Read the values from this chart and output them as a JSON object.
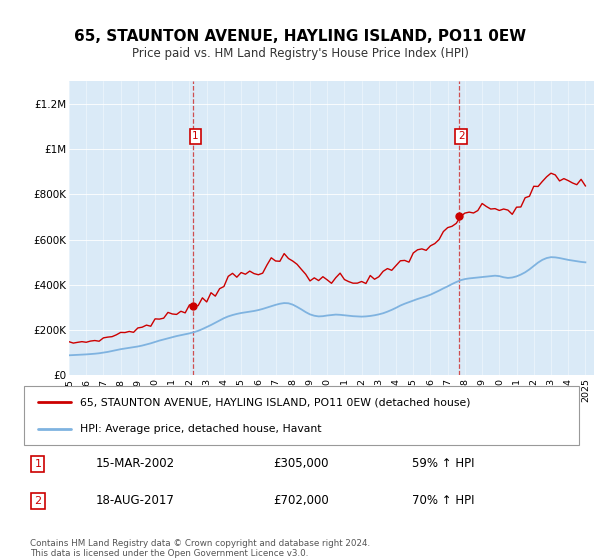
{
  "title": "65, STAUNTON AVENUE, HAYLING ISLAND, PO11 0EW",
  "subtitle": "Price paid vs. HM Land Registry's House Price Index (HPI)",
  "title_fontsize": 12,
  "subtitle_fontsize": 9,
  "bg_color": "#daeaf7",
  "legend_label_red": "65, STAUNTON AVENUE, HAYLING ISLAND, PO11 0EW (detached house)",
  "legend_label_blue": "HPI: Average price, detached house, Havant",
  "sale1_date": "15-MAR-2002",
  "sale1_price": "£305,000",
  "sale1_hpi": "59% ↑ HPI",
  "sale1_year": 2002.2,
  "sale1_value": 305000,
  "sale2_date": "18-AUG-2017",
  "sale2_price": "£702,000",
  "sale2_hpi": "70% ↑ HPI",
  "sale2_year": 2017.63,
  "sale2_value": 702000,
  "copyright": "Contains HM Land Registry data © Crown copyright and database right 2024.\nThis data is licensed under the Open Government Licence v3.0.",
  "ylim": [
    0,
    1300000
  ],
  "yticks": [
    0,
    200000,
    400000,
    600000,
    800000,
    1000000,
    1200000
  ],
  "ytick_labels": [
    "£0",
    "£200K",
    "£400K",
    "£600K",
    "£800K",
    "£1M",
    "£1.2M"
  ],
  "red_color": "#cc0000",
  "blue_color": "#7fb3e0",
  "dashed_color": "#cc3333",
  "hpi_years": [
    1995.0,
    1995.25,
    1995.5,
    1995.75,
    1996.0,
    1996.25,
    1996.5,
    1996.75,
    1997.0,
    1997.25,
    1997.5,
    1997.75,
    1998.0,
    1998.25,
    1998.5,
    1998.75,
    1999.0,
    1999.25,
    1999.5,
    1999.75,
    2000.0,
    2000.25,
    2000.5,
    2000.75,
    2001.0,
    2001.25,
    2001.5,
    2001.75,
    2002.0,
    2002.25,
    2002.5,
    2002.75,
    2003.0,
    2003.25,
    2003.5,
    2003.75,
    2004.0,
    2004.25,
    2004.5,
    2004.75,
    2005.0,
    2005.25,
    2005.5,
    2005.75,
    2006.0,
    2006.25,
    2006.5,
    2006.75,
    2007.0,
    2007.25,
    2007.5,
    2007.75,
    2008.0,
    2008.25,
    2008.5,
    2008.75,
    2009.0,
    2009.25,
    2009.5,
    2009.75,
    2010.0,
    2010.25,
    2010.5,
    2010.75,
    2011.0,
    2011.25,
    2011.5,
    2011.75,
    2012.0,
    2012.25,
    2012.5,
    2012.75,
    2013.0,
    2013.25,
    2013.5,
    2013.75,
    2014.0,
    2014.25,
    2014.5,
    2014.75,
    2015.0,
    2015.25,
    2015.5,
    2015.75,
    2016.0,
    2016.25,
    2016.5,
    2016.75,
    2017.0,
    2017.25,
    2017.5,
    2017.75,
    2018.0,
    2018.25,
    2018.5,
    2018.75,
    2019.0,
    2019.25,
    2019.5,
    2019.75,
    2020.0,
    2020.25,
    2020.5,
    2020.75,
    2021.0,
    2021.25,
    2021.5,
    2021.75,
    2022.0,
    2022.25,
    2022.5,
    2022.75,
    2023.0,
    2023.25,
    2023.5,
    2023.75,
    2024.0,
    2024.25,
    2024.5,
    2024.75,
    2025.0
  ],
  "hpi_values": [
    88000,
    89000,
    90000,
    91000,
    92000,
    93500,
    95000,
    97000,
    100000,
    103000,
    107000,
    111000,
    115000,
    118000,
    121000,
    124000,
    127000,
    131000,
    136000,
    141000,
    147000,
    153000,
    158000,
    163000,
    168000,
    173000,
    177000,
    181000,
    185000,
    190000,
    196000,
    204000,
    213000,
    222000,
    232000,
    242000,
    252000,
    260000,
    266000,
    271000,
    275000,
    278000,
    281000,
    284000,
    288000,
    293000,
    299000,
    305000,
    311000,
    316000,
    319000,
    318000,
    312000,
    302000,
    291000,
    279000,
    269000,
    263000,
    260000,
    261000,
    264000,
    266000,
    268000,
    267000,
    265000,
    263000,
    261000,
    260000,
    259000,
    260000,
    262000,
    265000,
    269000,
    274000,
    281000,
    289000,
    298000,
    308000,
    316000,
    323000,
    330000,
    337000,
    343000,
    349000,
    356000,
    365000,
    374000,
    384000,
    393000,
    403000,
    412000,
    420000,
    425000,
    428000,
    430000,
    432000,
    434000,
    436000,
    438000,
    440000,
    438000,
    433000,
    430000,
    432000,
    437000,
    445000,
    455000,
    468000,
    483000,
    498000,
    510000,
    518000,
    522000,
    521000,
    518000,
    514000,
    510000,
    507000,
    504000,
    501000,
    499000
  ]
}
